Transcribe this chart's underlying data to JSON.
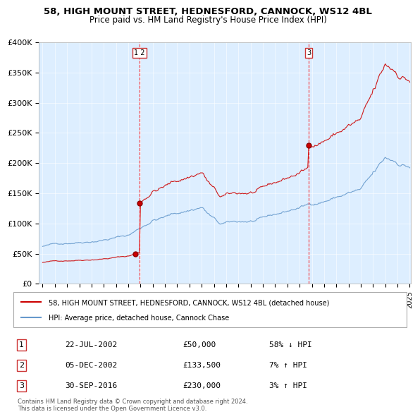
{
  "title": "58, HIGH MOUNT STREET, HEDNESFORD, CANNOCK, WS12 4BL",
  "subtitle": "Price paid vs. HM Land Registry's House Price Index (HPI)",
  "legend_line1": "58, HIGH MOUNT STREET, HEDNESFORD, CANNOCK, WS12 4BL (detached house)",
  "legend_line2": "HPI: Average price, detached house, Cannock Chase",
  "transactions": [
    {
      "num": 1,
      "date": "22-JUL-2002",
      "price": 50000,
      "pct": "58%",
      "dir": "↓",
      "label": "1"
    },
    {
      "num": 2,
      "date": "05-DEC-2002",
      "price": 133500,
      "pct": "7%",
      "dir": "↑",
      "label": "2"
    },
    {
      "num": 3,
      "date": "30-SEP-2016",
      "price": 230000,
      "pct": "3%",
      "dir": "↑",
      "label": "3"
    }
  ],
  "transaction_dates_decimal": [
    2002.55,
    2002.92,
    2016.75
  ],
  "transaction_prices": [
    50000,
    133500,
    230000
  ],
  "vline_dates_decimal": [
    2002.92,
    2016.75
  ],
  "vline_labels": [
    "1 2",
    "3"
  ],
  "ylabel": "",
  "ylim": [
    0,
    400000
  ],
  "yticks": [
    0,
    50000,
    100000,
    150000,
    200000,
    250000,
    300000,
    350000,
    400000
  ],
  "ytick_labels": [
    "£0",
    "£50K",
    "£100K",
    "£150K",
    "£200K",
    "£250K",
    "£300K",
    "£350K",
    "£400K"
  ],
  "hpi_color": "#6699cc",
  "price_color": "#cc0000",
  "background_color": "#ddeeff",
  "plot_background": "#ddeeff",
  "footer": "Contains HM Land Registry data © Crown copyright and database right 2024.\nThis data is licensed under the Open Government Licence v3.0.",
  "start_year": 1995,
  "end_year": 2025
}
